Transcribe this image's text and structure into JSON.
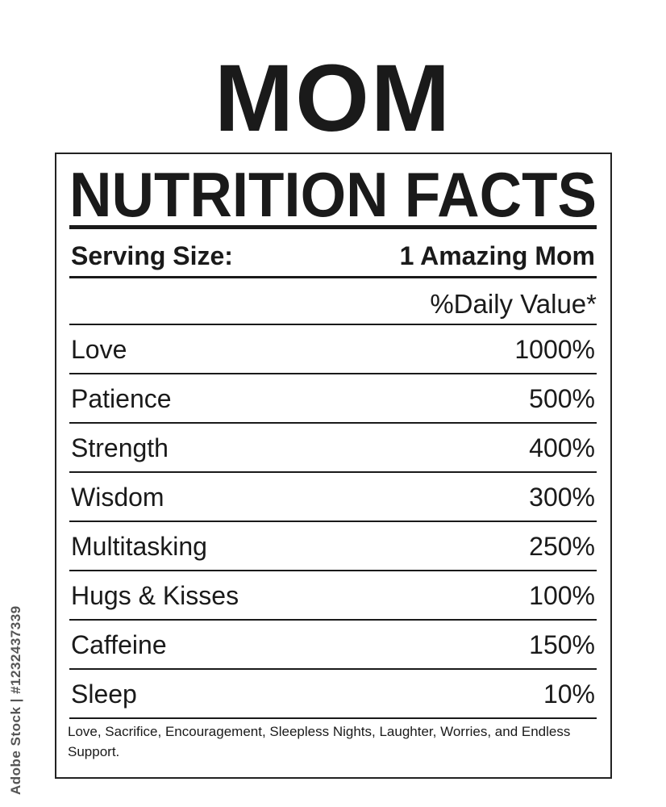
{
  "title": "MOM",
  "label": {
    "heading": "NUTRITION FACTS",
    "serving_size_label": "Serving Size:",
    "serving_size_value": "1 Amazing Mom",
    "daily_value_header": "%Daily Value*",
    "rows": [
      {
        "name": "Love",
        "value": "1000%"
      },
      {
        "name": "Patience",
        "value": "500%"
      },
      {
        "name": "Strength",
        "value": "400%"
      },
      {
        "name": "Wisdom",
        "value": "300%"
      },
      {
        "name": "Multitasking",
        "value": "250%"
      },
      {
        "name": "Hugs & Kisses",
        "value": "100%"
      },
      {
        "name": "Caffeine",
        "value": "150%"
      },
      {
        "name": "Sleep",
        "value": "10%"
      }
    ],
    "footnote": "Love, Sacrifice, Encouragement, Sleepless Nights, Laughter, Worries, and Endless Support."
  },
  "watermark": "Adobe Stock | #1232437339"
}
